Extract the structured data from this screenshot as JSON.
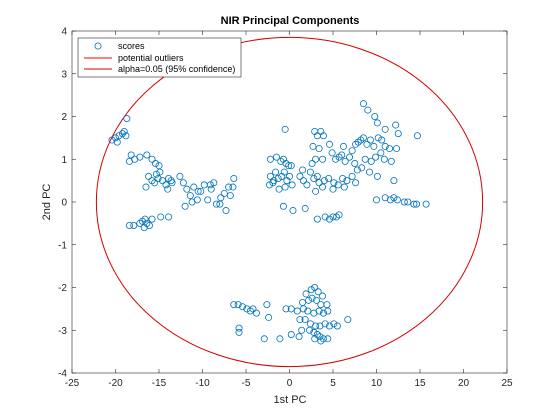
{
  "chart_data": {
    "type": "scatter",
    "title": "NIR Principal Components",
    "xlabel": "1st PC",
    "ylabel": "2nd PC",
    "xlim": [
      -25,
      25
    ],
    "ylim": [
      -4,
      4
    ],
    "xticks": [
      "-25",
      "-20",
      "-15",
      "-10",
      "-5",
      "0",
      "5",
      "10",
      "15",
      "20",
      "25"
    ],
    "yticks": [
      "-4",
      "-3",
      "-2",
      "-1",
      "0",
      "1",
      "2",
      "3",
      "4"
    ],
    "grid": false,
    "legend_position": "top-left",
    "legend": [
      "scores",
      "potential outliers",
      "alpha=0.05 (95% confidence)"
    ],
    "series": [
      {
        "name": "scores",
        "marker": "open-circle",
        "color": "#0072BD",
        "points": [
          [
            -20.0,
            1.5
          ],
          [
            -20.4,
            1.45
          ],
          [
            -19.6,
            1.55
          ],
          [
            -19.2,
            1.6
          ],
          [
            -19.0,
            1.65
          ],
          [
            -18.8,
            1.55
          ],
          [
            -19.8,
            1.4
          ],
          [
            -18.7,
            1.95
          ],
          [
            -18.2,
            1.1
          ],
          [
            -17.8,
            1.0
          ],
          [
            -18.4,
            0.95
          ],
          [
            -17.2,
            1.05
          ],
          [
            -16.4,
            1.1
          ],
          [
            -15.8,
            1.0
          ],
          [
            -15.4,
            0.9
          ],
          [
            -15.0,
            0.85
          ],
          [
            -16.2,
            0.6
          ],
          [
            -15.8,
            0.5
          ],
          [
            -15.5,
            0.45
          ],
          [
            -15.1,
            0.55
          ],
          [
            -14.6,
            0.5
          ],
          [
            -14.2,
            0.4
          ],
          [
            -13.9,
            0.55
          ],
          [
            -13.6,
            0.5
          ],
          [
            -16.5,
            0.35
          ],
          [
            -15.3,
            0.65
          ],
          [
            -14.9,
            0.7
          ],
          [
            -14.0,
            0.3
          ],
          [
            -13.5,
            0.45
          ],
          [
            -12.6,
            0.6
          ],
          [
            -12.2,
            0.45
          ],
          [
            -11.8,
            0.3
          ],
          [
            -11.4,
            0.15
          ],
          [
            -11.0,
            0.35
          ],
          [
            -10.6,
            0.05
          ],
          [
            -10.2,
            0.25
          ],
          [
            -9.8,
            0.4
          ],
          [
            -9.4,
            0.05
          ],
          [
            -9.0,
            0.3
          ],
          [
            -8.7,
            0.45
          ],
          [
            -8.4,
            -0.05
          ],
          [
            -7.9,
            0.1
          ],
          [
            -7.5,
            0.2
          ],
          [
            -7.0,
            0.35
          ],
          [
            -6.8,
            0.15
          ],
          [
            -6.4,
            0.55
          ],
          [
            -6.5,
            0.35
          ],
          [
            -12.0,
            -0.1
          ],
          [
            -11.2,
            0.0
          ],
          [
            -10.5,
            0.25
          ],
          [
            -8.0,
            -0.05
          ],
          [
            -7.3,
            -0.2
          ],
          [
            -9.1,
            0.4
          ],
          [
            -18.4,
            -0.55
          ],
          [
            -17.9,
            -0.55
          ],
          [
            -17.2,
            -0.5
          ],
          [
            -16.9,
            -0.45
          ],
          [
            -16.7,
            -0.6
          ],
          [
            -16.4,
            -0.5
          ],
          [
            -16.1,
            -0.55
          ],
          [
            -15.8,
            -0.4
          ],
          [
            -14.8,
            -0.35
          ],
          [
            -13.9,
            -0.35
          ],
          [
            -16.6,
            -0.4
          ],
          [
            -6.4,
            -2.4
          ],
          [
            -5.9,
            -2.4
          ],
          [
            -5.4,
            -2.45
          ],
          [
            -4.9,
            -2.5
          ],
          [
            -4.5,
            -2.55
          ],
          [
            -4.2,
            -2.5
          ],
          [
            -3.8,
            -2.6
          ],
          [
            -2.6,
            -2.4
          ],
          [
            -2.4,
            -2.7
          ],
          [
            -2.9,
            -3.2
          ],
          [
            -5.8,
            -2.95
          ],
          [
            -5.8,
            -3.05
          ],
          [
            -1.1,
            -3.2
          ],
          [
            -0.5,
            1.7
          ],
          [
            -2.2,
            1.0
          ],
          [
            -1.5,
            1.05
          ],
          [
            -1.0,
            0.95
          ],
          [
            -0.7,
            1.0
          ],
          [
            -0.4,
            0.9
          ],
          [
            -0.1,
            0.85
          ],
          [
            0.2,
            0.85
          ],
          [
            -2.2,
            0.6
          ],
          [
            -1.8,
            0.5
          ],
          [
            -1.6,
            0.7
          ],
          [
            -1.3,
            0.55
          ],
          [
            -0.9,
            0.6
          ],
          [
            -0.6,
            0.7
          ],
          [
            -0.3,
            0.5
          ],
          [
            0.0,
            0.6
          ],
          [
            -2.3,
            0.4
          ],
          [
            -1.9,
            0.45
          ],
          [
            -1.2,
            0.3
          ],
          [
            -0.5,
            0.35
          ],
          [
            0.3,
            0.4
          ],
          [
            1.2,
            0.6
          ],
          [
            1.6,
            0.5
          ],
          [
            2.0,
            0.4
          ],
          [
            1.5,
            0.75
          ],
          [
            2.9,
            1.65
          ],
          [
            3.2,
            1.55
          ],
          [
            3.6,
            1.65
          ],
          [
            3.9,
            1.55
          ],
          [
            2.7,
            1.3
          ],
          [
            3.4,
            1.25
          ],
          [
            3.0,
            1.0
          ],
          [
            2.6,
            0.9
          ],
          [
            3.8,
            1.0
          ],
          [
            4.6,
            1.35
          ],
          [
            4.9,
            1.15
          ],
          [
            5.3,
            1.0
          ],
          [
            5.7,
            1.05
          ],
          [
            6.0,
            1.1
          ],
          [
            6.4,
            0.95
          ],
          [
            6.2,
            1.3
          ],
          [
            6.9,
            1.05
          ],
          [
            7.2,
            1.2
          ],
          [
            7.6,
            1.35
          ],
          [
            7.9,
            1.4
          ],
          [
            8.2,
            1.45
          ],
          [
            8.5,
            1.5
          ],
          [
            8.9,
            1.35
          ],
          [
            9.3,
            1.45
          ],
          [
            9.7,
            1.3
          ],
          [
            10.2,
            1.5
          ],
          [
            10.6,
            1.45
          ],
          [
            11.0,
            1.3
          ],
          [
            11.5,
            1.25
          ],
          [
            10.9,
            1.0
          ],
          [
            10.5,
            1.15
          ],
          [
            9.9,
            1.05
          ],
          [
            9.4,
            0.95
          ],
          [
            8.7,
            1.0
          ],
          [
            8.3,
            0.8
          ],
          [
            7.8,
            0.75
          ],
          [
            7.5,
            0.9
          ],
          [
            7.2,
            0.6
          ],
          [
            6.6,
            0.5
          ],
          [
            6.1,
            0.55
          ],
          [
            5.6,
            0.4
          ],
          [
            5.1,
            0.45
          ],
          [
            4.5,
            0.55
          ],
          [
            4.0,
            0.5
          ],
          [
            3.4,
            0.45
          ],
          [
            3.2,
            0.6
          ],
          [
            2.8,
            0.55
          ],
          [
            2.4,
            0.7
          ],
          [
            3.0,
            0.25
          ],
          [
            3.8,
            0.35
          ],
          [
            5.0,
            0.3
          ],
          [
            6.3,
            0.35
          ],
          [
            7.6,
            0.45
          ],
          [
            9.2,
            0.7
          ],
          [
            10.1,
            0.6
          ],
          [
            8.5,
            2.3
          ],
          [
            9.0,
            2.15
          ],
          [
            9.8,
            2.0
          ],
          [
            10.1,
            1.85
          ],
          [
            11.0,
            1.7
          ],
          [
            12.2,
            1.8
          ],
          [
            12.5,
            1.6
          ],
          [
            14.7,
            1.55
          ],
          [
            12.3,
            1.25
          ],
          [
            11.7,
            0.95
          ],
          [
            12.0,
            0.5
          ],
          [
            4.1,
            -0.35
          ],
          [
            4.6,
            -0.4
          ],
          [
            5.0,
            -0.35
          ],
          [
            5.4,
            -0.35
          ],
          [
            5.7,
            -0.3
          ],
          [
            3.2,
            -0.4
          ],
          [
            1.8,
            -0.15
          ],
          [
            -0.7,
            -0.1
          ],
          [
            0.4,
            -0.2
          ],
          [
            11.0,
            0.1
          ],
          [
            11.6,
            0.05
          ],
          [
            12.0,
            0.1
          ],
          [
            12.4,
            0.05
          ],
          [
            13.2,
            0.0
          ],
          [
            13.6,
            0.0
          ],
          [
            14.3,
            -0.05
          ],
          [
            14.6,
            -0.05
          ],
          [
            15.7,
            -0.05
          ],
          [
            10.0,
            0.05
          ],
          [
            1.9,
            -2.15
          ],
          [
            2.5,
            -2.05
          ],
          [
            2.9,
            -2.0
          ],
          [
            3.3,
            -2.1
          ],
          [
            3.8,
            -2.2
          ],
          [
            1.5,
            -2.35
          ],
          [
            2.2,
            -2.3
          ],
          [
            2.6,
            -2.25
          ],
          [
            3.1,
            -2.3
          ],
          [
            3.6,
            -2.4
          ],
          [
            4.3,
            -2.4
          ],
          [
            1.6,
            -2.5
          ],
          [
            2.1,
            -2.55
          ],
          [
            2.8,
            -2.6
          ],
          [
            3.4,
            -2.55
          ],
          [
            3.9,
            -2.6
          ],
          [
            4.4,
            -2.55
          ],
          [
            0.2,
            -2.5
          ],
          [
            0.9,
            -2.55
          ],
          [
            -0.4,
            -2.5
          ],
          [
            1.2,
            -2.75
          ],
          [
            1.8,
            -2.75
          ],
          [
            2.4,
            -2.85
          ],
          [
            3.0,
            -2.9
          ],
          [
            3.5,
            -2.9
          ],
          [
            4.1,
            -2.85
          ],
          [
            4.6,
            -2.9
          ],
          [
            5.1,
            -2.85
          ],
          [
            5.5,
            -2.9
          ],
          [
            6.7,
            -2.75
          ],
          [
            0.2,
            -3.1
          ],
          [
            1.4,
            -3.0
          ],
          [
            2.3,
            -3.0
          ],
          [
            2.8,
            -3.05
          ],
          [
            3.2,
            -3.1
          ],
          [
            3.5,
            -3.15
          ],
          [
            3.9,
            -3.2
          ],
          [
            4.4,
            -3.2
          ],
          [
            2.9,
            -3.2
          ],
          [
            3.6,
            -3.25
          ],
          [
            1.1,
            -3.15
          ]
        ]
      },
      {
        "name": "potential outliers",
        "color": "#FF0000",
        "points": []
      },
      {
        "name": "alpha=0.05 (95% confidence)",
        "type": "ellipse",
        "color": "#D40000",
        "center": [
          0,
          0
        ],
        "radii": [
          22.2,
          3.85
        ]
      }
    ]
  }
}
